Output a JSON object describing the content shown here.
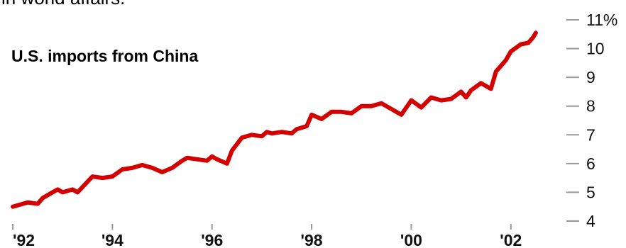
{
  "header": {
    "top_text": "in world affairs."
  },
  "chart_data": {
    "type": "line",
    "title": "U.S. imports from China",
    "xlabel": "",
    "ylabel": "",
    "x_tick_labels": [
      "'92",
      "'94",
      "'96",
      "'98",
      "'00",
      "'02"
    ],
    "x_tick_years": [
      1992,
      1994,
      1996,
      1998,
      2000,
      2002
    ],
    "y_ticks": [
      4,
      5,
      6,
      7,
      8,
      9,
      10,
      11
    ],
    "y_tick_labels": [
      "4",
      "5",
      "6",
      "7",
      "8",
      "9",
      "10",
      "11%"
    ],
    "xlim": [
      1992,
      2003
    ],
    "ylim": [
      4,
      11
    ],
    "grid": false,
    "colors": {
      "line": "#d40000",
      "tick": "#999999",
      "text": "#111111"
    },
    "series": [
      {
        "x": [
          1992.0,
          1992.3,
          1992.5,
          1992.6,
          1992.8,
          1992.9,
          1993.0,
          1993.2,
          1993.3,
          1993.6,
          1993.8,
          1994.0,
          1994.2,
          1994.4,
          1994.6,
          1994.8,
          1995.0,
          1995.2,
          1995.4,
          1995.5,
          1995.7,
          1995.9,
          1996.0,
          1996.1,
          1996.3,
          1996.4,
          1996.6,
          1996.8,
          1997.0,
          1997.1,
          1997.2,
          1997.4,
          1997.6,
          1997.7,
          1997.9,
          1998.0,
          1998.2,
          1998.4,
          1998.6,
          1998.8,
          1999.0,
          1999.2,
          1999.4,
          1999.6,
          1999.8,
          2000.0,
          2000.2,
          2000.4,
          2000.6,
          2000.8,
          2001.0,
          2001.1,
          2001.2,
          2001.4,
          2001.6,
          2001.7,
          2001.9,
          2002.0,
          2002.2,
          2002.35,
          2002.45,
          2002.5
        ],
        "values": [
          4.5,
          4.65,
          4.6,
          4.8,
          5.0,
          5.1,
          5.0,
          5.1,
          5.0,
          5.55,
          5.5,
          5.55,
          5.8,
          5.85,
          5.95,
          5.85,
          5.7,
          5.85,
          6.1,
          6.2,
          6.15,
          6.1,
          6.25,
          6.15,
          6.0,
          6.45,
          6.9,
          7.0,
          6.95,
          7.1,
          7.05,
          7.1,
          7.05,
          7.2,
          7.3,
          7.7,
          7.55,
          7.8,
          7.8,
          7.75,
          8.0,
          8.0,
          8.1,
          7.9,
          7.7,
          8.2,
          7.95,
          8.3,
          8.2,
          8.25,
          8.5,
          8.3,
          8.55,
          8.8,
          8.6,
          9.2,
          9.6,
          9.9,
          10.15,
          10.2,
          10.4,
          10.55
        ]
      }
    ]
  }
}
